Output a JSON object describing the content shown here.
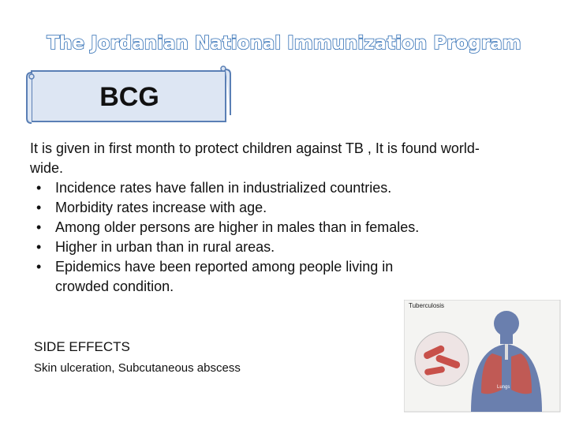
{
  "header": {
    "title": "The Jordanian National Immunization Program"
  },
  "banner": {
    "label": "BCG"
  },
  "body": {
    "intro": "It is given in first month to protect children against TB , It is found world-wide.",
    "bullets": [
      "Incidence rates have fallen in industrialized countries.",
      "Morbidity rates increase with age.",
      "Among older persons are higher in males than in females.",
      "Higher in urban than in rural areas.",
      "Epidemics have been reported among people living in crowded condition."
    ]
  },
  "side_effects": {
    "heading": "SIDE EFFECTS",
    "text": "Skin ulceration, Subcutaneous abscess"
  },
  "figure": {
    "title": "Tuberculosis",
    "label": "Lungs"
  }
}
